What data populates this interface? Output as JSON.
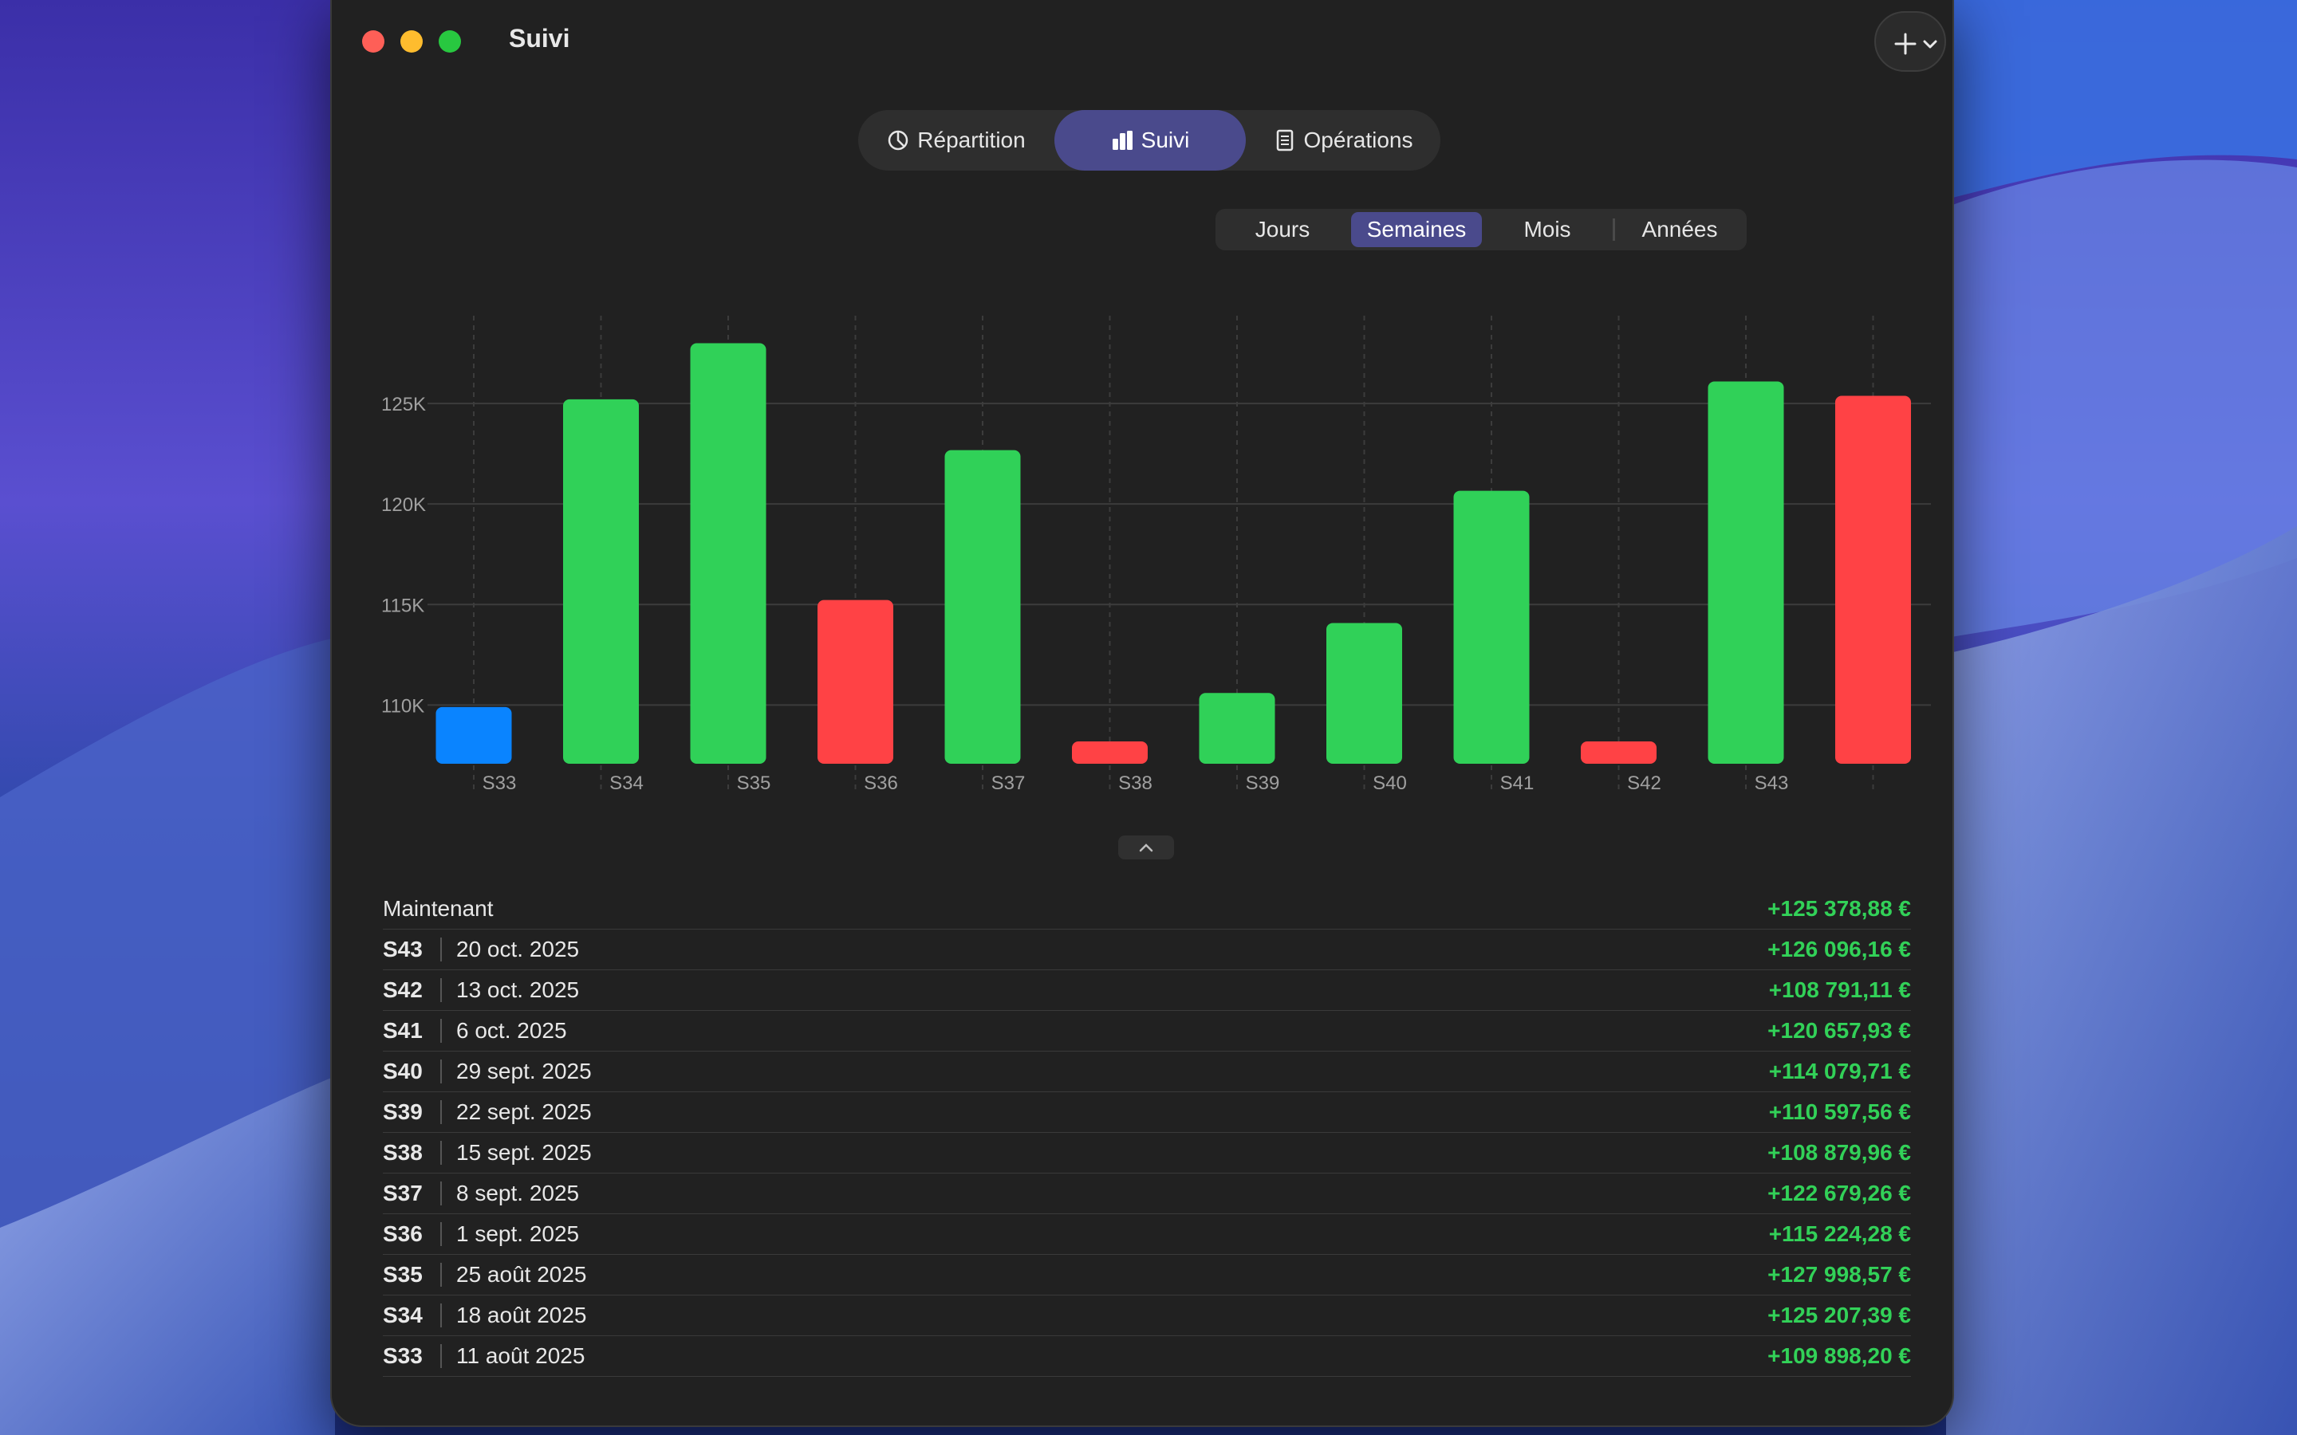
{
  "window": {
    "title": "Suivi"
  },
  "main_tabs": [
    {
      "label": "Répartition",
      "icon": "pie-chart-icon"
    },
    {
      "label": "Suivi",
      "icon": "bar-chart-icon",
      "selected": true
    },
    {
      "label": "Opérations",
      "icon": "document-icon"
    }
  ],
  "period_segments": [
    {
      "label": "Jours"
    },
    {
      "label": "Semaines",
      "selected": true
    },
    {
      "label": "Mois"
    },
    {
      "label": "Années"
    }
  ],
  "colors": {
    "up": "#30d158",
    "down": "#ff4245",
    "base": "#0a84ff",
    "accent": "#4a4a8c"
  },
  "chart_data": {
    "type": "bar",
    "subtype": "waterfall",
    "categories": [
      "S33",
      "S34",
      "S35",
      "S36",
      "S37",
      "S38",
      "S39",
      "S40",
      "S41",
      "S42",
      "S43",
      ""
    ],
    "values": [
      109898.2,
      125207.39,
      127998.57,
      115224.28,
      122679.26,
      108879.96,
      110597.56,
      114079.71,
      120657.93,
      108791.11,
      126096.16,
      125378.88
    ],
    "bar_colors": [
      "base",
      "up",
      "up",
      "down",
      "up",
      "down",
      "up",
      "up",
      "up",
      "down",
      "up",
      "down"
    ],
    "y_ticks": [
      "110K",
      "115K",
      "120K",
      "125K"
    ],
    "y_tick_values": [
      110000,
      115000,
      120000,
      125000
    ],
    "ylim": [
      107000,
      130000
    ],
    "grid": true
  },
  "list": {
    "now": {
      "label": "Maintenant",
      "value": "+125 378,88 €"
    },
    "rows": [
      {
        "week": "S43",
        "date": "20 oct. 2025",
        "value": "+126 096,16 €"
      },
      {
        "week": "S42",
        "date": "13 oct. 2025",
        "value": "+108 791,11 €"
      },
      {
        "week": "S41",
        "date": "6 oct. 2025",
        "value": "+120 657,93 €"
      },
      {
        "week": "S40",
        "date": "29 sept. 2025",
        "value": "+114 079,71 €"
      },
      {
        "week": "S39",
        "date": "22 sept. 2025",
        "value": "+110 597,56 €"
      },
      {
        "week": "S38",
        "date": "15 sept. 2025",
        "value": "+108 879,96 €"
      },
      {
        "week": "S37",
        "date": "8 sept. 2025",
        "value": "+122 679,26 €"
      },
      {
        "week": "S36",
        "date": "1 sept. 2025",
        "value": "+115 224,28 €"
      },
      {
        "week": "S35",
        "date": "25 août 2025",
        "value": "+127 998,57 €"
      },
      {
        "week": "S34",
        "date": "18 août 2025",
        "value": "+125 207,39 €"
      },
      {
        "week": "S33",
        "date": "11 août 2025",
        "value": "+109 898,20 €"
      }
    ]
  }
}
